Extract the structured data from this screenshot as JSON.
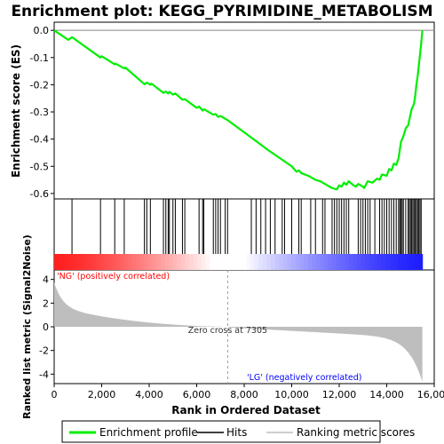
{
  "chart_data": {
    "type": "line",
    "title": "Enrichment plot: KEGG_PYRIMIDINE_METABOLISM",
    "xlabel": "Rank in Ordered Dataset",
    "ylabel_top": "Enrichment score (ES)",
    "ylabel_bottom": "Ranked list metric (Signal2Noise)",
    "xlim": [
      0,
      16000
    ],
    "x_ticks": [
      "0",
      "2,000",
      "4,000",
      "6,000",
      "8,000",
      "10,000",
      "12,000",
      "14,000",
      "16,000"
    ],
    "es_ylim": [
      -0.62,
      0.03
    ],
    "es_ticks": [
      "0.0",
      "-0.1",
      "-0.2",
      "-0.3",
      "-0.4",
      "-0.5",
      "-0.6"
    ],
    "metric_ylim": [
      -4.8,
      4.8
    ],
    "metric_ticks": [
      "4",
      "2",
      "0",
      "-2",
      "-4"
    ],
    "n_genes": 15500,
    "zero_cross": 7305,
    "zero_cross_label": "Zero cross at 7305",
    "pos_label": "'NG' (positively correlated)",
    "neg_label": "'LG' (negatively correlated)",
    "legend": [
      "Enrichment profile",
      "Hits",
      "Ranking metric scores"
    ],
    "colors": {
      "es_line": "#00ee00",
      "pos_label": "#ff0000",
      "neg_label": "#0000ff",
      "metric_fill": "#bebebe"
    },
    "es_profile": {
      "x": [
        0,
        600,
        750,
        1950,
        2000,
        2550,
        2600,
        2950,
        3000,
        3800,
        3900,
        4050,
        4100,
        4600,
        4700,
        4800,
        4850,
        5000,
        5100,
        5400,
        5500,
        6000,
        6100,
        6250,
        6300,
        6700,
        6800,
        6900,
        7000,
        7200,
        7300,
        8000,
        9000,
        10000,
        10200,
        10300,
        10400,
        10700,
        11000,
        11200,
        11400,
        11700,
        11900,
        12000,
        12100,
        12200,
        12300,
        12400,
        12600,
        12700,
        12800,
        13000,
        13050,
        13200,
        13400,
        13600,
        13700,
        13800,
        14000,
        14100,
        14200,
        14300,
        14400,
        14500,
        14550,
        14600,
        14700,
        14800,
        14900,
        15000,
        15050,
        15150,
        15200,
        15250,
        15300,
        15350,
        15400,
        15450,
        15500
      ],
      "y": [
        0.0,
        -0.035,
        -0.025,
        -0.1,
        -0.095,
        -0.125,
        -0.123,
        -0.14,
        -0.137,
        -0.198,
        -0.192,
        -0.2,
        -0.196,
        -0.23,
        -0.225,
        -0.232,
        -0.226,
        -0.236,
        -0.232,
        -0.255,
        -0.253,
        -0.285,
        -0.28,
        -0.295,
        -0.29,
        -0.31,
        -0.308,
        -0.318,
        -0.315,
        -0.325,
        -0.33,
        -0.375,
        -0.44,
        -0.5,
        -0.52,
        -0.515,
        -0.525,
        -0.535,
        -0.55,
        -0.555,
        -0.565,
        -0.58,
        -0.585,
        -0.57,
        -0.575,
        -0.56,
        -0.568,
        -0.555,
        -0.57,
        -0.575,
        -0.565,
        -0.575,
        -0.58,
        -0.555,
        -0.56,
        -0.545,
        -0.55,
        -0.53,
        -0.535,
        -0.51,
        -0.515,
        -0.49,
        -0.495,
        -0.47,
        -0.44,
        -0.41,
        -0.39,
        -0.36,
        -0.35,
        -0.31,
        -0.29,
        -0.27,
        -0.24,
        -0.2,
        -0.17,
        -0.13,
        -0.09,
        -0.05,
        0.0
      ]
    },
    "hits": [
      750,
      1950,
      2550,
      2950,
      3800,
      3900,
      4050,
      4600,
      4700,
      4800,
      4850,
      5000,
      5100,
      5400,
      5500,
      6100,
      6250,
      6300,
      6700,
      6800,
      6900,
      7000,
      7200,
      7300,
      8300,
      8500,
      8700,
      8900,
      9100,
      9300,
      9600,
      9700,
      10000,
      10300,
      10400,
      10800,
      11000,
      11300,
      11400,
      11700,
      11800,
      11900,
      12000,
      12100,
      12200,
      12300,
      12400,
      12800,
      12900,
      13000,
      13100,
      13200,
      13300,
      13500,
      13700,
      13800,
      13900,
      14000,
      14100,
      14200,
      14300,
      14400,
      14500,
      14550,
      14600,
      14650,
      14700,
      14800,
      14900,
      14950,
      15000,
      15050,
      15100,
      15150,
      15200,
      15250,
      15300,
      15350,
      15400,
      15450
    ]
  }
}
